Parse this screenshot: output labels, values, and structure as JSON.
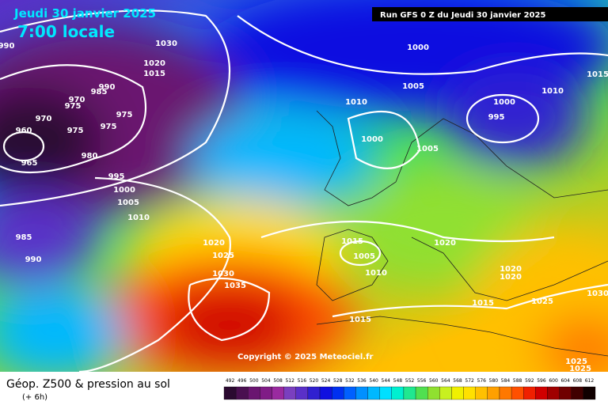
{
  "header": {
    "date": "Jeudi 30 janvier 2025",
    "time": "7:00 locale",
    "run": "Run GFS 0 Z du Jeudi 30 janvier 2025"
  },
  "copyright": "Copyright © 2025 Meteociel.fr",
  "footer": {
    "title": "Géop. Z500 & pression au sol",
    "lead": "(+ 6h)"
  },
  "isobars": [
    990,
    1030,
    1020,
    1015,
    990,
    985,
    970,
    975,
    970,
    960,
    975,
    975,
    975,
    980,
    965,
    995,
    1000,
    1005,
    1010,
    985,
    990,
    1020,
    1025,
    1030,
    1035,
    1000,
    1005,
    1010,
    1000,
    1005,
    1000,
    995,
    1010,
    1015,
    1015,
    1005,
    1010,
    1015,
    1020,
    1020,
    1020,
    1015,
    1025,
    1030,
    1025,
    1025
  ],
  "legend": {
    "values": [
      492,
      496,
      500,
      504,
      508,
      512,
      516,
      520,
      524,
      528,
      532,
      536,
      540,
      544,
      548,
      552,
      556,
      560,
      564,
      568,
      572,
      576,
      580,
      584,
      588,
      592,
      596,
      600,
      604,
      608,
      612
    ],
    "colors": [
      "#2b0a30",
      "#4a0f50",
      "#6a1570",
      "#801c86",
      "#9a2aa0",
      "#7a3fbf",
      "#5a30c8",
      "#3020d0",
      "#1010e0",
      "#0030f0",
      "#0060ff",
      "#0090ff",
      "#00b8ff",
      "#00e0ff",
      "#00f0d0",
      "#20e890",
      "#50e050",
      "#90e030",
      "#c8f020",
      "#f0f000",
      "#ffe000",
      "#ffc000",
      "#ffa000",
      "#ff7800",
      "#ff5000",
      "#f02000",
      "#d00000",
      "#a00000",
      "#700000",
      "#400000",
      "#100000"
    ]
  }
}
